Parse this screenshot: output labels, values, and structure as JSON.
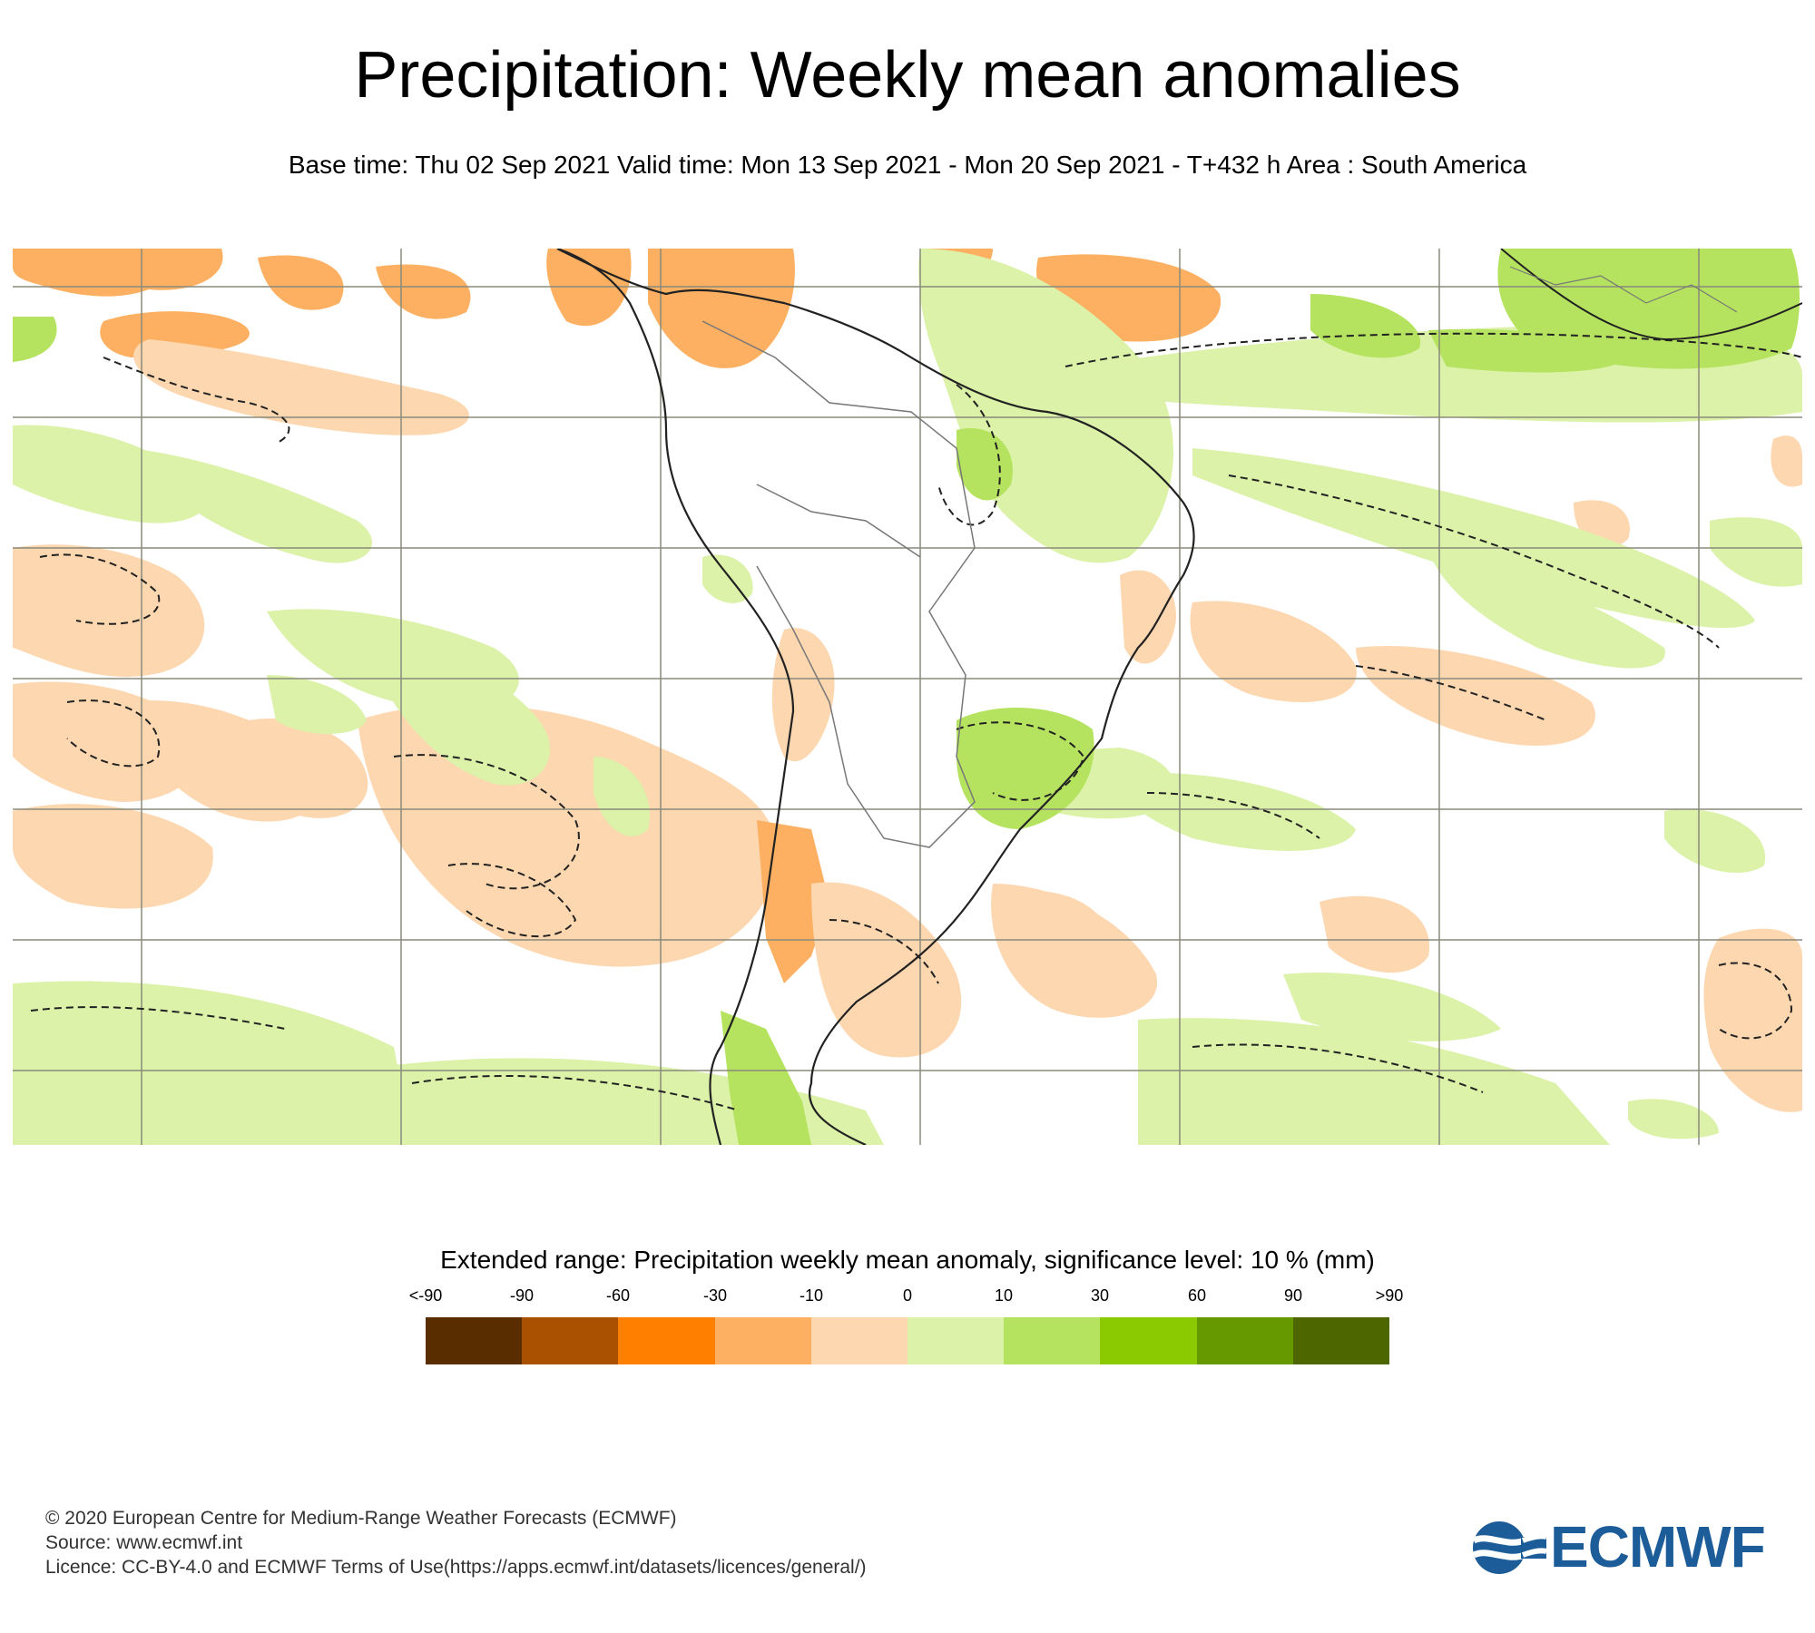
{
  "title": "Precipitation: Weekly mean anomalies",
  "subtitle": "Base time: Thu 02 Sep 2021 Valid time: Mon 13 Sep 2021 - Mon 20 Sep 2021 - T+432 h Area : South America",
  "legend": {
    "title": "Extended range: Precipitation weekly mean anomaly, significance level: 10 % (mm)",
    "ticks": [
      "<-90",
      "-90",
      "-60",
      "-30",
      "-10",
      "0",
      "10",
      "30",
      "60",
      "90",
      ">90"
    ],
    "colors": [
      "#5a2d00",
      "#a95100",
      "#ff7f00",
      "#feb062",
      "#fdd7b0",
      "#dbf2a8",
      "#b5e35f",
      "#8bca00",
      "#669900",
      "#4d6600"
    ]
  },
  "map": {
    "region": "South America",
    "colors": {
      "dry_light": "#fdd7b0",
      "dry_medium": "#feb062",
      "wet_light": "#dbf2a8",
      "wet_medium": "#b5e35f",
      "grid": "#8a8a7a",
      "coast": "#222222",
      "border": "#777777"
    }
  },
  "footer": {
    "copyright": "© 2020 European Centre for Medium-Range Weather Forecasts (ECMWF)",
    "source": "Source: www.ecmwf.int",
    "licence": "Licence: CC-BY-4.0 and ECMWF Terms of Use(https://apps.ecmwf.int/datasets/licences/general/)"
  },
  "logo": {
    "text": "ECMWF",
    "color": "#1c5c99"
  }
}
